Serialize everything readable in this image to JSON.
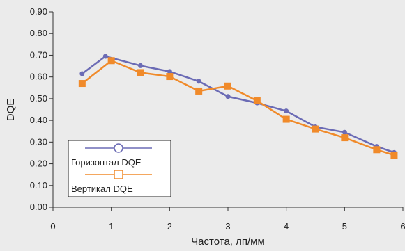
{
  "chart_data": {
    "type": "line",
    "xlabel": "Частота, лп/мм",
    "ylabel": "DQE",
    "xlim": [
      0,
      6
    ],
    "ylim": [
      0,
      0.9
    ],
    "x_ticks": [
      "0",
      "1",
      "2",
      "3",
      "4",
      "5",
      "6"
    ],
    "y_ticks": [
      "0.00",
      "0.10",
      "0.20",
      "0.30",
      "0.40",
      "0.50",
      "0.60",
      "0.70",
      "0.80",
      "0.90"
    ],
    "grid": false,
    "legend_position": "bottom-left",
    "series": [
      {
        "name": "Горизонтал DQE",
        "color": "#6b6bb5",
        "marker": "circle",
        "x": [
          0.5,
          0.9,
          1.5,
          2.0,
          2.5,
          3.0,
          3.5,
          4.0,
          4.5,
          5.0,
          5.55,
          5.85
        ],
        "y": [
          0.615,
          0.695,
          0.652,
          0.625,
          0.58,
          0.51,
          0.48,
          0.443,
          0.37,
          0.345,
          0.28,
          0.252
        ]
      },
      {
        "name": "Вертикал DQE",
        "color": "#f08a2a",
        "marker": "square",
        "x": [
          0.5,
          1.0,
          1.5,
          2.0,
          2.5,
          3.0,
          3.5,
          4.0,
          4.5,
          5.0,
          5.55,
          5.85
        ],
        "y": [
          0.57,
          0.675,
          0.62,
          0.602,
          0.535,
          0.558,
          0.49,
          0.405,
          0.36,
          0.32,
          0.265,
          0.24
        ]
      }
    ]
  }
}
